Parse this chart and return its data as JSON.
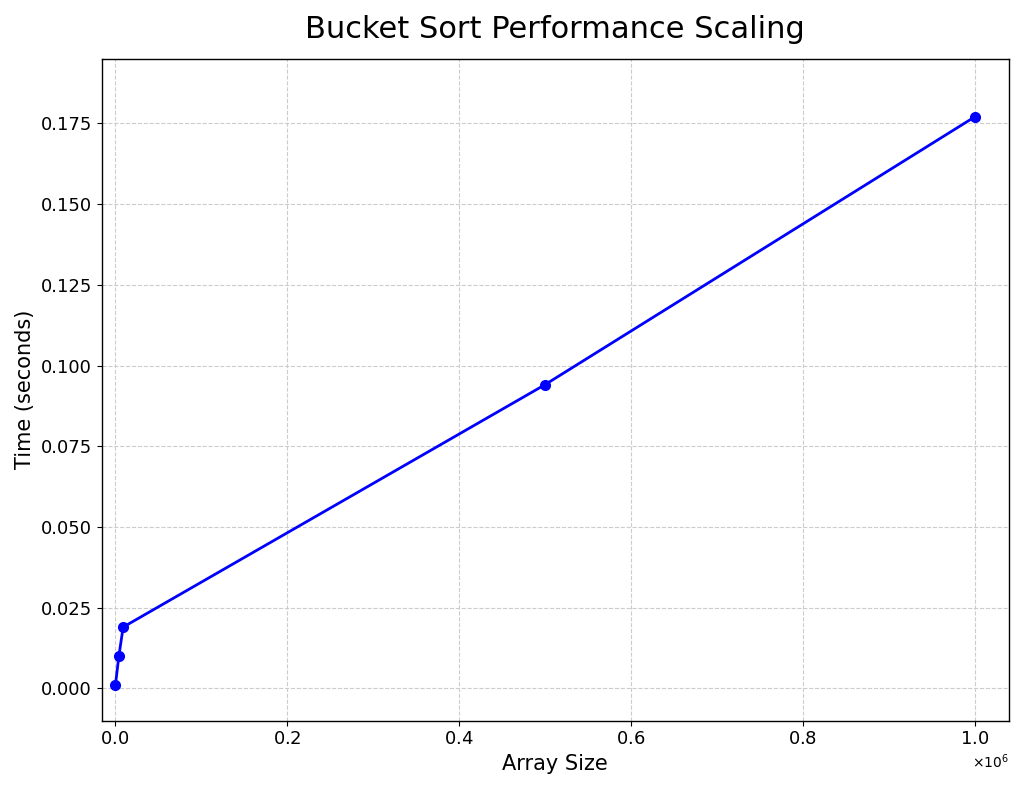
{
  "title": "Bucket Sort Performance Scaling",
  "xlabel": "Array Size",
  "ylabel": "Time (seconds)",
  "x_values": [
    1000,
    5000,
    10000,
    500000,
    1000000
  ],
  "y_values": [
    0.001,
    0.01,
    0.019,
    0.094,
    0.177
  ],
  "line_color": "#0000ff",
  "marker": "o",
  "marker_color": "#0000ff",
  "marker_size": 7,
  "line_width": 2,
  "background_color": "#ffffff",
  "grid_color": "#cccccc",
  "grid_linestyle": "--",
  "title_fontsize": 22,
  "label_fontsize": 15,
  "tick_fontsize": 13,
  "xlim": [
    -15000,
    1040000
  ],
  "ylim": [
    -0.01,
    0.195
  ]
}
